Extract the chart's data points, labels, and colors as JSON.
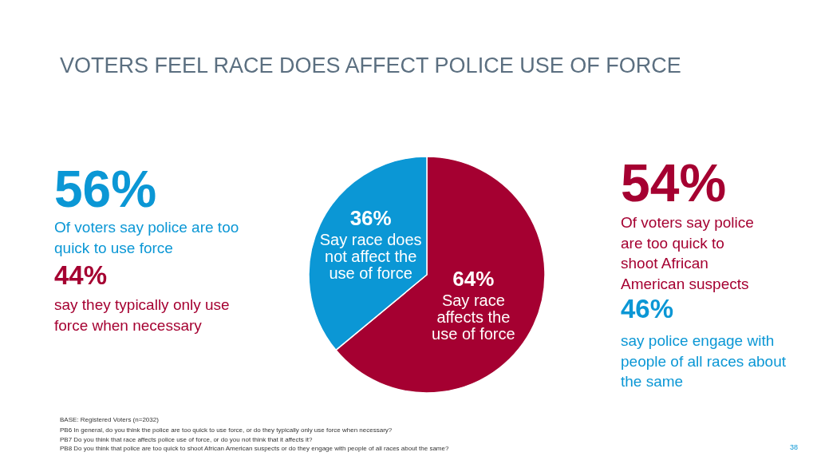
{
  "chart_data": {
    "type": "pie",
    "title": "VOTERS FEEL RACE DOES AFFECT POLICE USE OF FORCE",
    "categories": [
      "Say race affects the use of force",
      "Say race does not affect the use of force"
    ],
    "values": [
      64,
      36
    ],
    "colors": [
      "#a50031",
      "#0b97d5"
    ],
    "value_labels": [
      "64%",
      "36%"
    ],
    "annotations": [
      "56%",
      "Of voters say police are too quick to use force",
      "44%",
      "say they typically only use force when necessary",
      "54%",
      "Of voters say police are too quick to shoot African American suspects",
      "46%",
      "say police engage with people of all races about the same",
      "BASE: Registered Voters (n=2032)",
      "PB6 In general, do you think the police are too quick to use force, or do they typically only use force when necessary?",
      "PB7 Do you think that race affects police use of force, or do you not think that it affects it?",
      "PB8 Do you think that police are too quick to shoot African American suspects or do they engage with people of all races about the same?",
      "38"
    ]
  }
}
